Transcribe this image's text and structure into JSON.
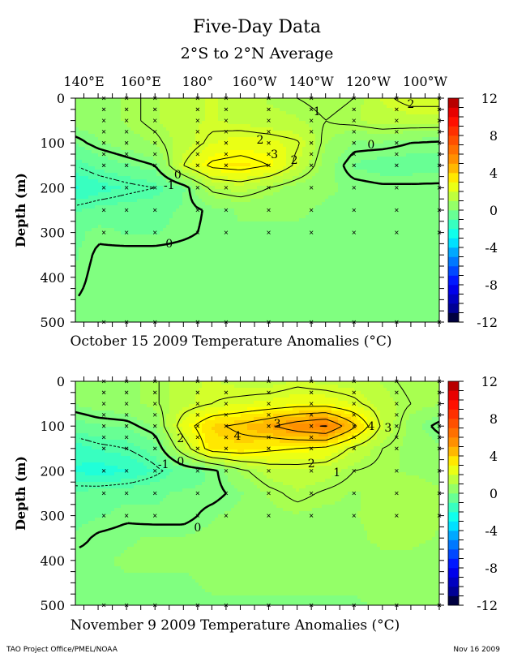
{
  "title": "Five-Day Data",
  "subtitle": "2°S to 2°N Average",
  "footer_left": "TAO Project Office/PMEL/NOAA",
  "footer_right": "Nov 16 2009",
  "chart_data": [
    {
      "type": "heatmap",
      "caption": "October 15 2009 Temperature Anomalies (°C)",
      "ylabel": "Depth (m)",
      "x_ticks": [
        {
          "value": 140,
          "label": "140°E"
        },
        {
          "value": 160,
          "label": "160°E"
        },
        {
          "value": 180,
          "label": "180°"
        },
        {
          "value": 200,
          "label": "160°W"
        },
        {
          "value": 220,
          "label": "140°W"
        },
        {
          "value": 240,
          "label": "120°W"
        },
        {
          "value": 260,
          "label": "100°W"
        }
      ],
      "y_ticks": [
        "0",
        "100",
        "200",
        "300",
        "400",
        "500"
      ],
      "xlim": [
        137,
        265
      ],
      "ylim": [
        0,
        500
      ],
      "contour_levels": [
        -1,
        0,
        1,
        2,
        3
      ],
      "lons": [
        137,
        145,
        155,
        165,
        175,
        185,
        195,
        205,
        215,
        225,
        235,
        245,
        255,
        265
      ],
      "depths": [
        0,
        50,
        100,
        150,
        200,
        250,
        300,
        350,
        400,
        450,
        500
      ],
      "values": [
        [
          0.5,
          0.5,
          0.8,
          1.2,
          1.6,
          1.8,
          1.5,
          1.2,
          1.0,
          0.8,
          1.0,
          1.8,
          2.3,
          2.3
        ],
        [
          0.5,
          0.5,
          0.8,
          1.2,
          1.6,
          1.8,
          1.6,
          1.4,
          1.3,
          1.0,
          1.2,
          1.5,
          1.5,
          1.5
        ],
        [
          -0.2,
          0.2,
          0.5,
          0.8,
          1.5,
          2.2,
          2.5,
          2.4,
          2.1,
          0.8,
          0.2,
          0.2,
          0.0,
          -0.1
        ],
        [
          -1.0,
          -0.6,
          -0.3,
          0.0,
          2.0,
          3.2,
          3.4,
          3.0,
          1.8,
          0.5,
          -0.3,
          -0.5,
          -0.5,
          -0.4
        ],
        [
          -1.8,
          -1.5,
          -1.2,
          -1.0,
          -0.3,
          1.2,
          1.5,
          1.0,
          0.5,
          0.3,
          0.2,
          0.1,
          0.1,
          0.1
        ],
        [
          -0.8,
          -0.6,
          -0.5,
          -0.4,
          -0.2,
          0.1,
          0.3,
          0.3,
          0.3,
          0.2,
          0.2,
          0.2,
          0.2,
          0.2
        ],
        [
          -0.4,
          -0.1,
          -0.3,
          -0.3,
          -0.1,
          0.1,
          0.2,
          0.2,
          0.2,
          0.2,
          0.2,
          0.2,
          0.2,
          0.2
        ],
        [
          -0.3,
          0.1,
          0.2,
          0.2,
          0.2,
          0.2,
          0.2,
          0.2,
          0.2,
          0.2,
          0.2,
          0.2,
          0.2,
          0.2
        ],
        [
          -0.2,
          0.2,
          0.2,
          0.2,
          0.2,
          0.2,
          0.2,
          0.2,
          0.2,
          0.2,
          0.2,
          0.2,
          0.2,
          0.2
        ],
        [
          0.0,
          0.2,
          0.2,
          0.2,
          0.2,
          0.2,
          0.2,
          0.2,
          0.2,
          0.2,
          0.2,
          0.2,
          0.2,
          0.2
        ],
        [
          0.2,
          0.2,
          0.2,
          0.2,
          0.2,
          0.2,
          0.2,
          0.2,
          0.2,
          0.2,
          0.2,
          0.2,
          0.2,
          0.2
        ]
      ],
      "contour_labels": [
        {
          "text": "2",
          "lon": 202,
          "depth": 92
        },
        {
          "text": "3",
          "lon": 207,
          "depth": 125
        },
        {
          "text": "2",
          "lon": 214,
          "depth": 138
        },
        {
          "text": "0",
          "lon": 173,
          "depth": 170
        },
        {
          "text": "-1",
          "lon": 170,
          "depth": 194
        },
        {
          "text": "0",
          "lon": 170,
          "depth": 324
        },
        {
          "text": "0",
          "lon": 241,
          "depth": 103
        },
        {
          "text": "1",
          "lon": 222,
          "depth": 29
        },
        {
          "text": "2",
          "lon": 255,
          "depth": 13
        }
      ]
    },
    {
      "type": "heatmap",
      "caption": "November 9 2009 Temperature Anomalies (°C)",
      "ylabel": "Depth (m)",
      "x_ticks": [],
      "y_ticks": [
        "0",
        "100",
        "200",
        "300",
        "400",
        "500"
      ],
      "xlim": [
        137,
        265
      ],
      "ylim": [
        0,
        500
      ],
      "contour_levels": [
        -1,
        0,
        1,
        2,
        3,
        4,
        5,
        6
      ],
      "lons": [
        137,
        145,
        155,
        165,
        175,
        185,
        195,
        205,
        215,
        225,
        235,
        245,
        255,
        265
      ],
      "depths": [
        0,
        50,
        100,
        150,
        200,
        250,
        300,
        350,
        400,
        450,
        500
      ],
      "values": [
        [
          0.5,
          0.5,
          0.6,
          0.9,
          1.6,
          1.8,
          1.6,
          1.5,
          1.8,
          1.6,
          1.5,
          1.2,
          0.8,
          0.8
        ],
        [
          0.3,
          0.5,
          0.6,
          0.9,
          1.6,
          2.0,
          2.2,
          2.4,
          2.6,
          2.6,
          2.2,
          1.5,
          1.0,
          0.8
        ],
        [
          -0.5,
          -0.3,
          -0.2,
          0.3,
          2.5,
          3.8,
          4.2,
          4.8,
          5.6,
          6.1,
          4.2,
          1.8,
          0.5,
          -0.2
        ],
        [
          -1.5,
          -1.2,
          -1.0,
          -0.5,
          1.5,
          3.5,
          3.6,
          3.2,
          3.0,
          2.8,
          1.8,
          1.0,
          0.6,
          0.4
        ],
        [
          -1.8,
          -2.1,
          -1.8,
          -1.2,
          -0.5,
          -0.2,
          0.8,
          1.5,
          1.6,
          1.5,
          1.0,
          0.8,
          0.7,
          0.6
        ],
        [
          -0.6,
          -0.5,
          -0.4,
          -0.3,
          -0.2,
          -0.2,
          0.2,
          0.8,
          1.2,
          0.9,
          0.7,
          0.9,
          1.0,
          0.8
        ],
        [
          -0.4,
          -0.3,
          -0.1,
          -0.2,
          -0.2,
          0.2,
          0.4,
          0.6,
          0.7,
          0.6,
          0.7,
          1.0,
          1.0,
          0.8
        ],
        [
          -0.2,
          0.1,
          0.2,
          0.3,
          0.3,
          0.4,
          0.4,
          0.5,
          0.5,
          0.5,
          0.6,
          0.9,
          0.9,
          0.7
        ],
        [
          0.2,
          0.2,
          0.3,
          0.3,
          0.3,
          0.3,
          0.3,
          0.4,
          0.4,
          0.4,
          0.5,
          0.6,
          0.6,
          0.5
        ],
        [
          0.2,
          0.2,
          0.2,
          0.2,
          0.2,
          0.3,
          0.3,
          0.3,
          0.3,
          0.3,
          0.3,
          0.4,
          0.4,
          0.3
        ],
        [
          0.2,
          0.2,
          0.2,
          0.2,
          0.2,
          0.2,
          0.2,
          0.2,
          0.2,
          0.2,
          0.2,
          0.3,
          0.3,
          0.3
        ]
      ],
      "contour_labels": [
        {
          "text": "3",
          "lon": 208,
          "depth": 94
        },
        {
          "text": "4",
          "lon": 194,
          "depth": 121
        },
        {
          "text": "4",
          "lon": 241,
          "depth": 100
        },
        {
          "text": "3",
          "lon": 247,
          "depth": 103
        },
        {
          "text": "2",
          "lon": 220,
          "depth": 183
        },
        {
          "text": "1",
          "lon": 229,
          "depth": 203
        },
        {
          "text": "0",
          "lon": 174,
          "depth": 178
        },
        {
          "text": "-1",
          "lon": 168,
          "depth": 185
        },
        {
          "text": "2",
          "lon": 174,
          "depth": 127
        },
        {
          "text": "0",
          "lon": 180,
          "depth": 326
        }
      ]
    }
  ],
  "sample_lons": [
    147,
    155,
    165,
    180,
    190,
    205,
    220,
    235,
    250,
    265
  ],
  "sample_depths": [
    0,
    25,
    50,
    75,
    100,
    125,
    150,
    200,
    250,
    300,
    500
  ],
  "colorbar": {
    "range": [
      -12,
      12
    ],
    "labels": [
      "12",
      "8",
      "4",
      "0",
      "-4",
      "-8",
      "-12"
    ],
    "colormap": [
      {
        "v": -12,
        "c": "#000000"
      },
      {
        "v": -11,
        "c": "#000080"
      },
      {
        "v": -8,
        "c": "#0000ff"
      },
      {
        "v": -6,
        "c": "#0060ff"
      },
      {
        "v": -4,
        "c": "#00c0ff"
      },
      {
        "v": -3,
        "c": "#00ffff"
      },
      {
        "v": -2,
        "c": "#20ffd8"
      },
      {
        "v": -1,
        "c": "#50ffa8"
      },
      {
        "v": 0,
        "c": "#80ff80"
      },
      {
        "v": 1,
        "c": "#a8ff50"
      },
      {
        "v": 2,
        "c": "#d4ff2a"
      },
      {
        "v": 3,
        "c": "#ffff00"
      },
      {
        "v": 4,
        "c": "#ffd000"
      },
      {
        "v": 5,
        "c": "#ffa000"
      },
      {
        "v": 6,
        "c": "#ff8000"
      },
      {
        "v": 8,
        "c": "#ff4000"
      },
      {
        "v": 10,
        "c": "#ff0000"
      },
      {
        "v": 12,
        "c": "#a00000"
      }
    ]
  }
}
